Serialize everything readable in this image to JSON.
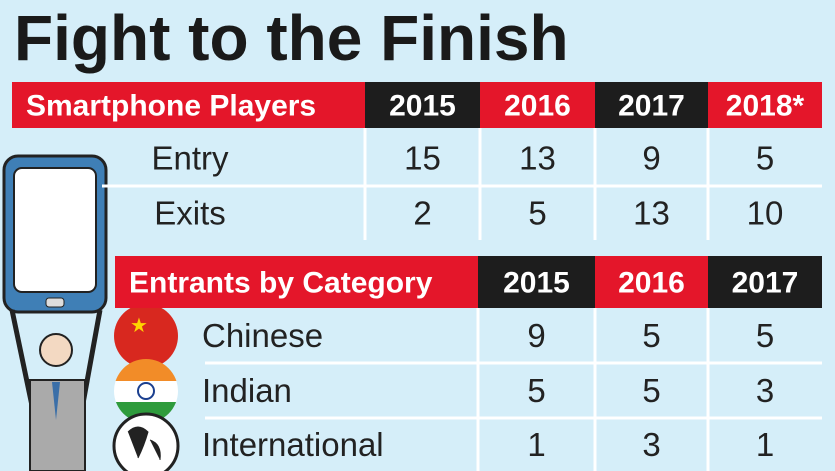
{
  "title": "Fight to the Finish",
  "table1": {
    "header": [
      "Smartphone Players",
      "2015",
      "2016",
      "2017",
      "2018*"
    ],
    "rows": [
      [
        "Entry",
        15,
        13,
        9,
        5
      ],
      [
        "Exits",
        2,
        5,
        13,
        10
      ]
    ]
  },
  "table2": {
    "header": [
      "Entrants by Category",
      "2015",
      "2016",
      "2017"
    ],
    "rows": [
      [
        "Chinese",
        9,
        5,
        5
      ],
      [
        "Indian",
        5,
        5,
        3
      ],
      [
        "International",
        1,
        3,
        1
      ]
    ]
  }
}
